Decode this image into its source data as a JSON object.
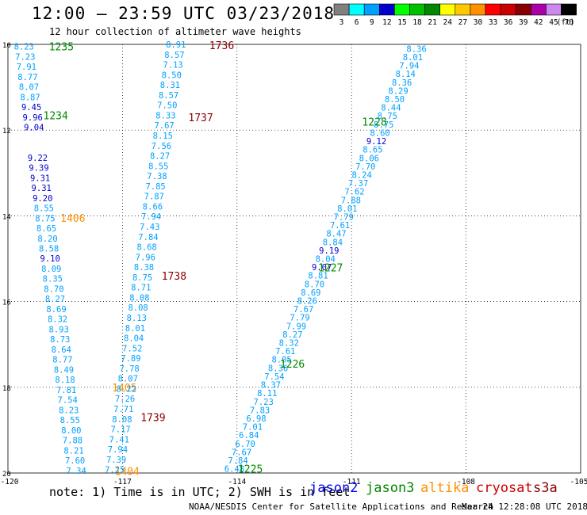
{
  "header": {
    "title": "12:00 — 23:59 UTC 03/23/2018",
    "subtitle": "12 hour collection of altimeter wave heights"
  },
  "colorbar": {
    "unit_label": "(ft)",
    "swatches": [
      {
        "value": "3",
        "color": "#808080"
      },
      {
        "value": "6",
        "color": "#00ffff"
      },
      {
        "value": "9",
        "color": "#00a0ff"
      },
      {
        "value": "12",
        "color": "#0000cc"
      },
      {
        "value": "15",
        "color": "#00ff00"
      },
      {
        "value": "18",
        "color": "#00c000"
      },
      {
        "value": "21",
        "color": "#008800"
      },
      {
        "value": "24",
        "color": "#ffff00"
      },
      {
        "value": "27",
        "color": "#ffc800"
      },
      {
        "value": "30",
        "color": "#ff9000"
      },
      {
        "value": "33",
        "color": "#ff0000"
      },
      {
        "value": "36",
        "color": "#cc0000"
      },
      {
        "value": "39",
        "color": "#880000"
      },
      {
        "value": "42",
        "color": "#aa00aa"
      },
      {
        "value": "45",
        "color": "#cc88ee"
      },
      {
        "value": "70",
        "color": "#000000"
      }
    ]
  },
  "chart_data": {
    "type": "scatter",
    "x_ticks": [
      "-120",
      "-117",
      "-114",
      "-111",
      "-108",
      "-105"
    ],
    "y_ticks": [
      "20",
      "18",
      "16",
      "14",
      "12",
      "10"
    ],
    "xlim": [
      -120,
      -105
    ],
    "ylim": [
      -20,
      -10
    ],
    "grid": true,
    "tracks": [
      {
        "name": "jason3 pass A",
        "lon_start": -119.58,
        "lat_start": -10.05,
        "lon_end": -118.21,
        "lat_end": -19.94,
        "values": [
          "8.23",
          "7.23",
          "7.91",
          "8.77",
          "8.07",
          "8.87",
          "9.45",
          "9.96",
          "9.04",
          "",
          "",
          "9.22",
          "9.39",
          "9.31",
          "9.31",
          "9.20",
          "8.55",
          "8.75",
          "8.65",
          "8.20",
          "8.58",
          "9.10",
          "8.09",
          "8.35",
          "8.70",
          "8.27",
          "8.69",
          "8.32",
          "8.93",
          "8.73",
          "8.64",
          "8.77",
          "8.49",
          "8.18",
          "7.81",
          "7.54",
          "8.23",
          "8.55",
          "8.00",
          "7.88",
          "8.21",
          "7.60",
          "7.34"
        ],
        "times": [
          {
            "label": "1235",
            "lon": -118.6,
            "lat": -10.05,
            "color": "#008800"
          },
          {
            "label": "1234",
            "lon": -118.75,
            "lat": -11.65,
            "color": "#008800"
          },
          {
            "label": "1406",
            "lon": -118.3,
            "lat": -14.05,
            "color": "#ff9000"
          },
          {
            "label": "1405",
            "lon": -116.95,
            "lat": -18.0,
            "color": "#ff9000"
          },
          {
            "label": "1404",
            "lon": -116.88,
            "lat": -19.95,
            "color": "#ff9000"
          }
        ]
      },
      {
        "name": "cryosat pass",
        "lon_start": -115.6,
        "lat_start": -10.0,
        "lon_end": -117.2,
        "lat_end": -19.92,
        "values": [
          "8.91",
          "8.57",
          "7.13",
          "8.50",
          "8.31",
          "8.57",
          "7.50",
          "8.33",
          "7.67",
          "8.15",
          "7.56",
          "8.27",
          "8.55",
          "7.38",
          "7.85",
          "7.87",
          "8.66",
          "7.94",
          "7.43",
          "7.84",
          "8.68",
          "7.96",
          "8.38",
          "8.75",
          "8.71",
          "8.08",
          "8.08",
          "8.13",
          "8.01",
          "8.04",
          "7.52",
          "7.89",
          "7.78",
          "8.07",
          "8.22",
          "7.26",
          "7.71",
          "8.08",
          "7.17",
          "7.41",
          "7.94",
          "7.39",
          "7.25"
        ],
        "times": [
          {
            "label": "1736",
            "lon": -114.4,
            "lat": -10.02,
            "color": "#880000"
          },
          {
            "label": "1737",
            "lon": -114.95,
            "lat": -11.7,
            "color": "#880000"
          },
          {
            "label": "1738",
            "lon": -115.65,
            "lat": -15.4,
            "color": "#880000"
          },
          {
            "label": "1739",
            "lon": -116.2,
            "lat": -18.7,
            "color": "#880000"
          }
        ]
      },
      {
        "name": "jason3 pass B",
        "lon_start": -109.3,
        "lat_start": -10.1,
        "lon_end": -114.07,
        "lat_end": -19.9,
        "values": [
          "8.36",
          "8.01",
          "7.94",
          "8.14",
          "8.36",
          "8.29",
          "8.50",
          "8.44",
          "8.75",
          "8.75",
          "8.60",
          "9.12",
          "8.65",
          "8.06",
          "7.70",
          "8.24",
          "7.37",
          "7.62",
          "7.88",
          "8.01",
          "7.79",
          "7.61",
          "8.47",
          "8.84",
          "9.19",
          "8.04",
          "9.07",
          "8.81",
          "8.70",
          "8.69",
          "8.26",
          "7.67",
          "7.79",
          "7.99",
          "8.27",
          "8.32",
          "7.61",
          "8.05",
          "8.36",
          "7.54",
          "8.37",
          "8.11",
          "7.23",
          "7.83",
          "6.98",
          "7.01",
          "6.84",
          "6.70",
          "7.67",
          "7.84",
          "6.48"
        ],
        "times": [
          {
            "label": "1228",
            "lon": -110.4,
            "lat": -11.8,
            "color": "#008800"
          },
          {
            "label": "1227",
            "lon": -111.55,
            "lat": -15.2,
            "color": "#008800"
          },
          {
            "label": "1226",
            "lon": -112.55,
            "lat": -17.45,
            "color": "#008800"
          },
          {
            "label": "1225",
            "lon": -113.65,
            "lat": -19.9,
            "color": "#008800"
          }
        ]
      }
    ]
  },
  "footer": {
    "note": "note: 1) Time is in UTC; 2) SWH is in feet",
    "credit": "NOAA/NESDIS Center for Satellite Applications and Research",
    "timestamp": "Mar 24 12:28:08 UTC 2018"
  },
  "legend": [
    {
      "label": "jason2",
      "color": "#0000ee"
    },
    {
      "label": "jason3",
      "color": "#008800"
    },
    {
      "label": "altika",
      "color": "#ff9000"
    },
    {
      "label": "cryosat",
      "color": "#cc0000"
    },
    {
      "label": "s3a",
      "color": "#880000"
    }
  ]
}
